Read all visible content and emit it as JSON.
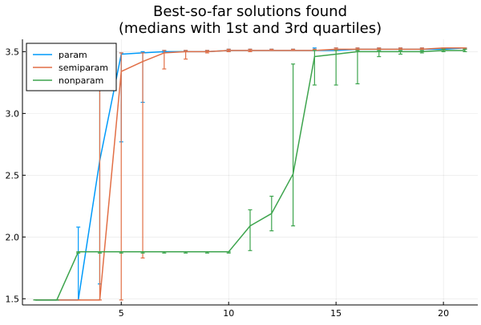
{
  "chart_data": {
    "type": "line",
    "title": "Best-so-far solutions found",
    "subtitle": "(medians with 1st and 3rd quartiles)",
    "xlabel": "",
    "ylabel": "",
    "xlim": [
      0.4,
      21.6
    ],
    "ylim": [
      1.45,
      3.6
    ],
    "xticks": [
      5,
      10,
      15,
      20
    ],
    "yticks": [
      1.5,
      2.0,
      2.5,
      3.0,
      3.5
    ],
    "grid": true,
    "legend_position": "top-left",
    "series": [
      {
        "name": "param",
        "color": "#009AFA",
        "x": [
          1,
          2,
          3,
          4,
          5,
          6,
          7,
          8,
          9,
          10,
          11,
          12,
          13,
          14,
          15,
          16,
          17,
          18,
          19,
          20,
          21
        ],
        "median": [
          1.49,
          1.49,
          1.49,
          2.62,
          3.48,
          3.49,
          3.5,
          3.5,
          3.5,
          3.51,
          3.51,
          3.51,
          3.51,
          3.51,
          3.51,
          3.52,
          3.52,
          3.52,
          3.52,
          3.52,
          3.53
        ],
        "q1": [
          1.49,
          1.49,
          1.49,
          1.62,
          2.77,
          3.09,
          3.49,
          3.5,
          3.5,
          3.5,
          3.51,
          3.51,
          3.51,
          3.51,
          3.51,
          3.51,
          3.52,
          3.52,
          3.52,
          3.52,
          3.52
        ],
        "q3": [
          1.49,
          1.49,
          2.08,
          3.48,
          3.49,
          3.5,
          3.51,
          3.51,
          3.51,
          3.52,
          3.52,
          3.52,
          3.52,
          3.53,
          3.53,
          3.53,
          3.53,
          3.53,
          3.53,
          3.53,
          3.53
        ]
      },
      {
        "name": "semiparam",
        "color": "#E26F46",
        "x": [
          1,
          2,
          3,
          4,
          5,
          6,
          7,
          8,
          9,
          10,
          11,
          12,
          13,
          14,
          15,
          16,
          17,
          18,
          19,
          20,
          21
        ],
        "median": [
          1.49,
          1.49,
          1.49,
          1.49,
          3.34,
          3.42,
          3.49,
          3.5,
          3.5,
          3.51,
          3.51,
          3.51,
          3.51,
          3.51,
          3.52,
          3.52,
          3.52,
          3.52,
          3.52,
          3.53,
          3.53
        ],
        "q1": [
          1.49,
          1.49,
          1.49,
          1.49,
          1.49,
          1.83,
          3.36,
          3.44,
          3.49,
          3.5,
          3.5,
          3.51,
          3.51,
          3.51,
          3.51,
          3.51,
          3.52,
          3.52,
          3.52,
          3.52,
          3.52
        ],
        "q3": [
          1.49,
          1.49,
          1.49,
          3.49,
          3.49,
          3.49,
          3.51,
          3.51,
          3.51,
          3.52,
          3.52,
          3.52,
          3.52,
          3.52,
          3.53,
          3.53,
          3.53,
          3.53,
          3.53,
          3.53,
          3.53
        ]
      },
      {
        "name": "nonparam",
        "color": "#3DA44D",
        "x": [
          1,
          2,
          3,
          4,
          5,
          6,
          7,
          8,
          9,
          10,
          11,
          12,
          13,
          14,
          15,
          16,
          17,
          18,
          19,
          20,
          21
        ],
        "median": [
          1.49,
          1.49,
          1.88,
          1.88,
          1.88,
          1.88,
          1.88,
          1.88,
          1.88,
          1.88,
          2.09,
          2.19,
          2.51,
          3.46,
          3.48,
          3.5,
          3.5,
          3.5,
          3.5,
          3.51,
          3.51
        ],
        "q1": [
          1.49,
          1.49,
          1.87,
          1.87,
          1.87,
          1.87,
          1.87,
          1.87,
          1.87,
          1.87,
          1.89,
          2.05,
          2.09,
          3.23,
          3.23,
          3.24,
          3.46,
          3.48,
          3.49,
          3.5,
          3.5
        ],
        "q3": [
          1.49,
          1.49,
          1.88,
          1.88,
          1.88,
          1.88,
          1.88,
          1.88,
          1.88,
          1.88,
          2.22,
          2.33,
          3.4,
          3.51,
          3.51,
          3.51,
          3.51,
          3.51,
          3.51,
          3.52,
          3.52
        ]
      }
    ]
  }
}
